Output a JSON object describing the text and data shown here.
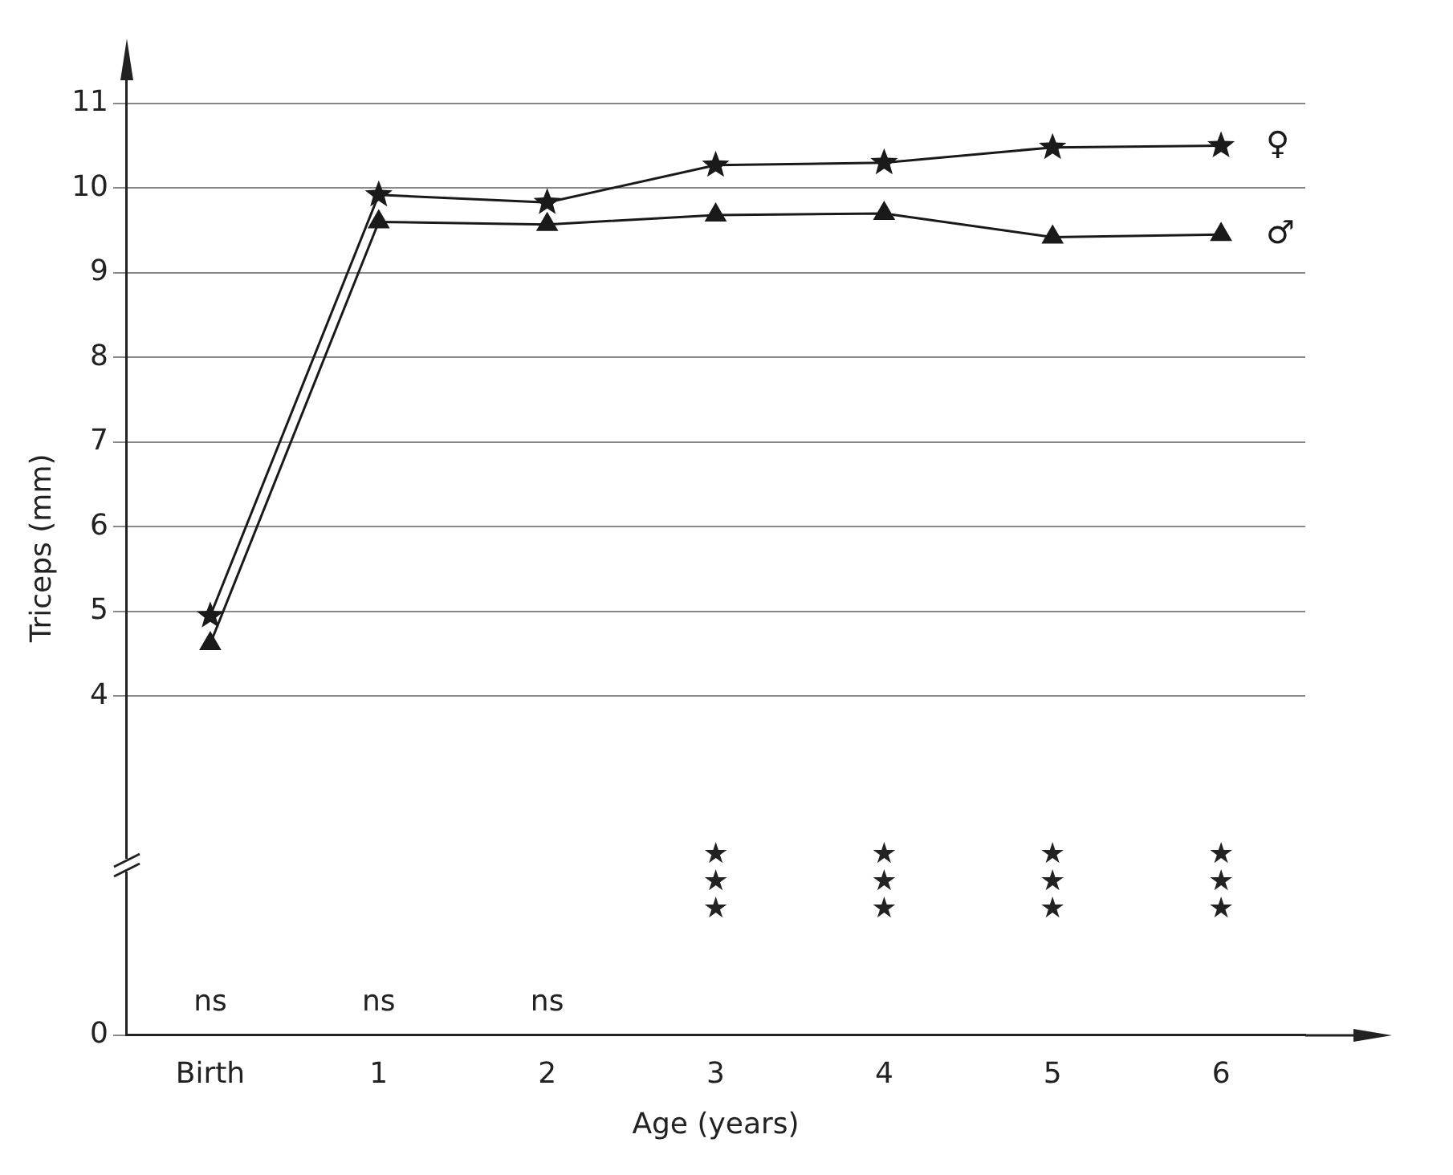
{
  "chart_data": {
    "type": "line",
    "xlabel": "Age (years)",
    "ylabel": "Triceps (mm)",
    "categories": [
      "Birth",
      "1",
      "2",
      "3",
      "4",
      "5",
      "6"
    ],
    "series": [
      {
        "name": "♀",
        "color": "#1a1a1a",
        "marker": "star",
        "values": [
          4.95,
          9.92,
          9.83,
          10.27,
          10.3,
          10.48,
          10.5
        ]
      },
      {
        "name": "♂",
        "color": "#1a1a1a",
        "marker": "triangle",
        "values": [
          4.62,
          9.6,
          9.57,
          9.68,
          9.7,
          9.42,
          9.45
        ]
      }
    ],
    "ylim": [
      0,
      11.5
    ],
    "yticks": [
      0,
      4,
      5,
      6,
      7,
      8,
      9,
      10,
      11
    ],
    "grid": "y",
    "legend": false,
    "annotations": [
      "ns",
      "ns",
      "ns",
      "★★★",
      "★★★",
      "★★★",
      "★★★"
    ]
  }
}
